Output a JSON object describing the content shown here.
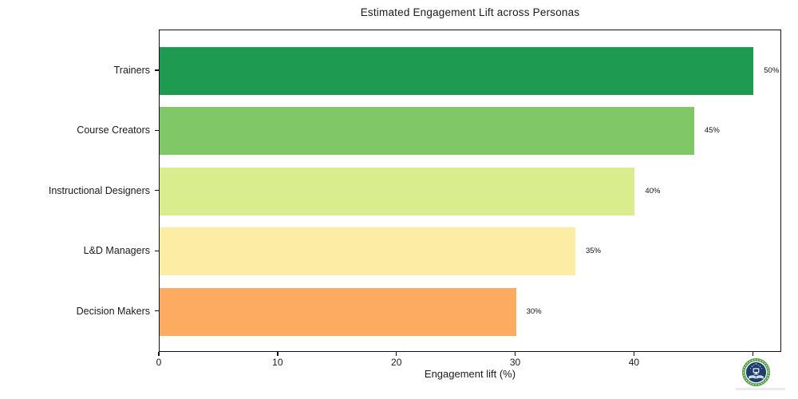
{
  "chart_data": {
    "type": "bar",
    "orientation": "horizontal",
    "title": "Estimated Engagement Lift across Personas",
    "xlabel": "Engagement lift (%)",
    "ylabel": "",
    "categories": [
      "Trainers",
      "Course Creators",
      "Instructional Designers",
      "L&D Managers",
      "Decision Makers"
    ],
    "values": [
      50,
      45,
      40,
      35,
      30
    ],
    "value_labels": [
      "50%",
      "45%",
      "40%",
      "35%",
      "30%"
    ],
    "bar_colors": [
      "#1f9a51",
      "#80c767",
      "#d9ed8e",
      "#fdeca3",
      "#fcab61"
    ],
    "xlim": [
      0,
      52.4
    ],
    "xticks": [
      0,
      10,
      20,
      30,
      40,
      50
    ],
    "xtick_labels": [
      "0",
      "10",
      "20",
      "30",
      "40",
      "50"
    ],
    "grid": false,
    "legend": null,
    "text_color": "#1a1a1a"
  },
  "branding": {
    "logo_name": "education-academy-badge",
    "ring_color": "#56a14a",
    "core_color": "#1e3d6b",
    "book_color": "#cfe3f5"
  }
}
